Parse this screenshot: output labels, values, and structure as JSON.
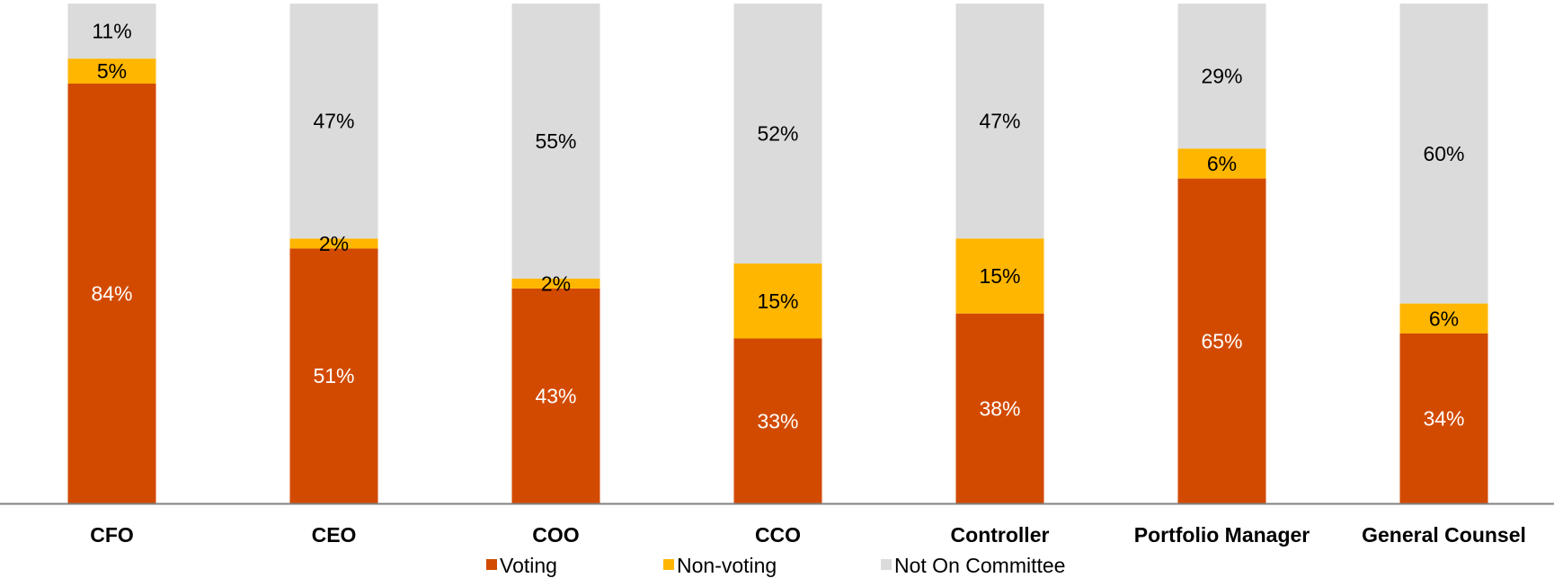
{
  "chart_data": {
    "type": "bar",
    "stacked": true,
    "title": "",
    "xlabel": "",
    "ylabel": "",
    "ylim": [
      0,
      100
    ],
    "grid": false,
    "legend_position": "bottom",
    "categories": [
      "CFO",
      "CEO",
      "COO",
      "CCO",
      "Controller",
      "Portfolio Manager",
      "General Counsel"
    ],
    "series": [
      {
        "name": "Voting",
        "color": "#D24A00",
        "label_color": "#FFFFFF",
        "values": [
          84,
          51,
          43,
          33,
          38,
          65,
          34
        ],
        "labels": [
          "84%",
          "51%",
          "43%",
          "33%",
          "38%",
          "65%",
          "34%"
        ]
      },
      {
        "name": "Non-voting",
        "color": "#FFB600",
        "label_color": "#000000",
        "values": [
          5,
          2,
          2,
          15,
          15,
          6,
          6
        ],
        "labels": [
          "5%",
          "2%",
          "2%",
          "15%",
          "15%",
          "6%",
          "6%"
        ]
      },
      {
        "name": "Not On Committee",
        "color": "#DBDBDB",
        "label_color": "#000000",
        "values": [
          11,
          47,
          55,
          52,
          47,
          29,
          60
        ],
        "labels": [
          "11%",
          "47%",
          "55%",
          "52%",
          "47%",
          "29%",
          "60%"
        ]
      }
    ],
    "axis_color": "#808080"
  }
}
